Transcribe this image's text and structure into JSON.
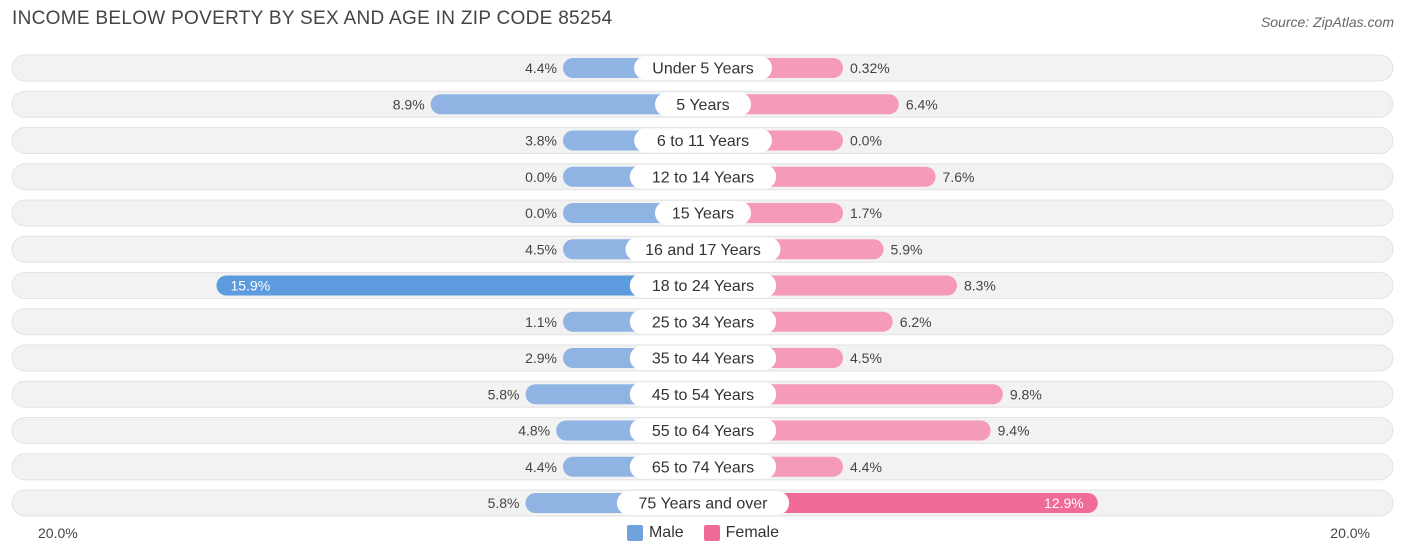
{
  "title": "INCOME BELOW POVERTY BY SEX AND AGE IN ZIP CODE 85254",
  "source": "Source: ZipAtlas.com",
  "axis": {
    "left_label": "20.0%",
    "right_label": "20.0%"
  },
  "legend": {
    "male": "Male",
    "female": "Female"
  },
  "colors": {
    "male": "#8fb4e3",
    "male_strong": "#5b9bde",
    "female": "#f59ab8",
    "female_strong": "#f06b99",
    "track": "#f2f2f2"
  },
  "chart_data": {
    "type": "bar",
    "orientation": "horizontal-diverging",
    "title": "INCOME BELOW POVERTY BY SEX AND AGE IN ZIP CODE 85254",
    "xlim": [
      -20.0,
      20.0
    ],
    "categories": [
      "Under 5 Years",
      "5 Years",
      "6 to 11 Years",
      "12 to 14 Years",
      "15 Years",
      "16 and 17 Years",
      "18 to 24 Years",
      "25 to 34 Years",
      "35 to 44 Years",
      "45 to 54 Years",
      "55 to 64 Years",
      "65 to 74 Years",
      "75 Years and over"
    ],
    "series": [
      {
        "name": "Male",
        "values": [
          4.4,
          8.9,
          3.8,
          0.0,
          0.0,
          4.5,
          15.9,
          1.1,
          2.9,
          5.8,
          4.8,
          4.4,
          5.8
        ],
        "labels": [
          "4.4%",
          "8.9%",
          "3.8%",
          "0.0%",
          "0.0%",
          "4.5%",
          "15.9%",
          "1.1%",
          "2.9%",
          "5.8%",
          "4.8%",
          "4.4%",
          "5.8%"
        ]
      },
      {
        "name": "Female",
        "values": [
          0.32,
          6.4,
          0.0,
          7.6,
          1.7,
          5.9,
          8.3,
          6.2,
          4.5,
          9.8,
          9.4,
          4.4,
          12.9
        ],
        "labels": [
          "0.32%",
          "6.4%",
          "0.0%",
          "7.6%",
          "1.7%",
          "5.9%",
          "8.3%",
          "6.2%",
          "4.5%",
          "9.8%",
          "9.4%",
          "4.4%",
          "12.9%"
        ]
      }
    ]
  }
}
